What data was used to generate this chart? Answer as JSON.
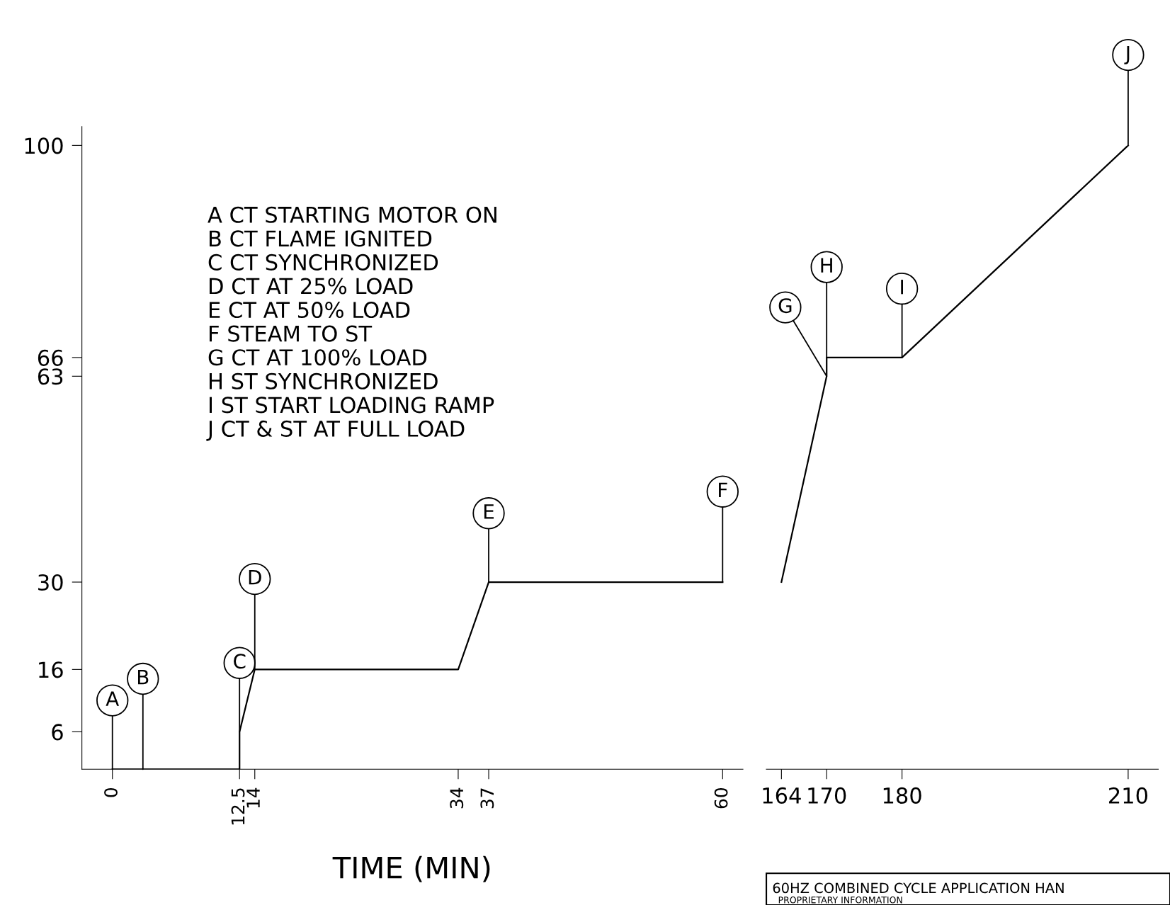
{
  "chart_data": [
    {
      "type": "line",
      "xlabel": "TIME (MIN)",
      "xlim": [
        -3,
        62
      ],
      "xticks": [
        0,
        12.5,
        14,
        34,
        37,
        60
      ],
      "ylim": [
        0,
        103
      ],
      "yticks": [
        6,
        16,
        30,
        63,
        66,
        100
      ],
      "grid": false,
      "legend": false,
      "marker": "none",
      "line_style": "solid",
      "series": [
        {
          "color": "#000000",
          "x": [
            0,
            3,
            12.5,
            12.5,
            14,
            34,
            37,
            60
          ],
          "values": [
            0,
            0,
            0,
            6,
            16,
            16,
            30,
            30
          ]
        }
      ],
      "annotations": [
        {
          "text": "A",
          "x": 0,
          "y": 0
        },
        {
          "text": "B",
          "x": 3,
          "y": 0
        },
        {
          "text": "C",
          "x": 12.5,
          "y": 6
        },
        {
          "text": "D",
          "x": 14,
          "y": 16
        },
        {
          "text": "E",
          "x": 37,
          "y": 30
        },
        {
          "text": "F",
          "x": 60,
          "y": 30
        },
        "A CT STARTING MOTOR ON",
        "B CT FLAME IGNITED",
        "C CT SYNCHRONIZED",
        "D CT AT 25% LOAD",
        "E CT AT 50% LOAD",
        "F STEAM TO ST",
        "G CT AT 100% LOAD",
        "H ST SYNCHRONIZED",
        "I ST START LOADING RAMP",
        "J CT & ST AT FULL LOAD"
      ]
    },
    {
      "type": "line",
      "xlim": [
        162,
        214
      ],
      "xticks": [
        164,
        170,
        180,
        210
      ],
      "ylim": [
        0,
        100
      ],
      "yticks": [
        6,
        16,
        30,
        63,
        66,
        100
      ],
      "tick_labels": "x",
      "grid": false,
      "legend": false,
      "marker": "none",
      "line_style": "solid",
      "series": [
        {
          "color": "#000000",
          "x": [
            164,
            170,
            170,
            180,
            210
          ],
          "values": [
            30,
            63,
            66,
            66,
            100
          ]
        }
      ],
      "annotations": [
        {
          "text": "G",
          "x": 170,
          "y": 63
        },
        {
          "text": "H",
          "x": 170,
          "y": 66
        },
        {
          "text": "I",
          "x": 180,
          "y": 66
        },
        {
          "text": "J",
          "x": 210,
          "y": 100
        },
        "60HZ COMBINED CYCLE APPLICATION HAN",
        "PROPRIETARY INFORMATION"
      ]
    }
  ]
}
